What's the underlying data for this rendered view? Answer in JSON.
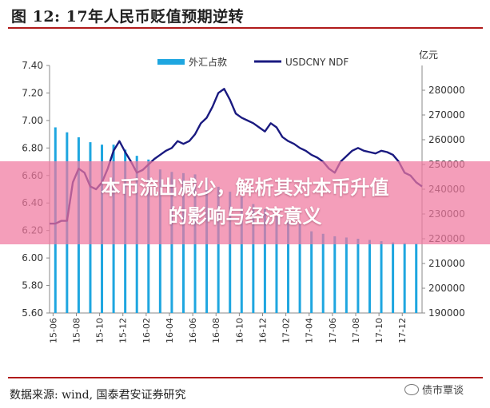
{
  "figure": {
    "title": "图 12: 17年人民币贬值预期逆转",
    "source": "数据来源: wind, 国泰君安证券研究",
    "watermark": "债市覃谈",
    "banner_line1": "本币流出减少，解析其对本币升值",
    "banner_line2": "的影响与经济意义"
  },
  "colors": {
    "bar": "#1ea6e0",
    "line": "#1a1a80",
    "title_rule": "#b01a1a",
    "banner": "#f078a0"
  },
  "chart_data": {
    "type": "bar+line",
    "grid": false,
    "legend_position": "top-center",
    "right_axis_unit": "亿元",
    "x_tick_labels": [
      "15-06",
      "15-08",
      "15-10",
      "15-12",
      "16-02",
      "16-04",
      "16-06",
      "16-08",
      "16-10",
      "16-12",
      "17-02",
      "17-04",
      "17-06",
      "17-08",
      "17-10",
      "17-12"
    ],
    "left_axis": {
      "min": 5.6,
      "max": 7.4,
      "ticks": [
        "5.60",
        "5.80",
        "6.00",
        "6.20",
        "6.40",
        "6.60",
        "6.80",
        "7.00",
        "7.20",
        "7.40"
      ]
    },
    "right_axis": {
      "min": 190000,
      "max": 290000,
      "ticks": [
        "190000",
        "200000",
        "210000",
        "220000",
        "230000",
        "240000",
        "250000",
        "260000",
        "270000",
        "280000"
      ]
    },
    "series": [
      {
        "name": "外汇占款",
        "kind": "bar",
        "axis": "right",
        "x": [
          0.5,
          1.5,
          2.5,
          3.5,
          4.5,
          5.5,
          6.5,
          7.5,
          8.5,
          9.5,
          10.5,
          11.5,
          12.5,
          13.5,
          14.5,
          15.5,
          16.5,
          17.5,
          18.5,
          19.5,
          20.5,
          21.5,
          22.5,
          23.5,
          24.5,
          25.5,
          26.5,
          27.5,
          28.5,
          29.5,
          30.5,
          31.5
        ],
        "values": [
          265000,
          263000,
          261000,
          259000,
          258000,
          258000,
          256000,
          253500,
          252000,
          248000,
          247000,
          246500,
          246000,
          244500,
          241000,
          239000,
          237000,
          234000,
          232000,
          229000,
          227000,
          226000,
          223000,
          222000,
          221000,
          220500,
          220000,
          219500,
          219000,
          218500,
          218200,
          218000
        ]
      },
      {
        "name": "USDCNY NDF",
        "kind": "line",
        "axis": "left",
        "x": [
          0,
          0.5,
          1,
          1.5,
          2,
          2.5,
          3,
          3.5,
          4,
          4.5,
          5,
          5.5,
          6,
          6.5,
          7,
          7.5,
          8,
          8.5,
          9,
          9.5,
          10,
          10.5,
          11,
          11.5,
          12,
          12.5,
          13,
          13.5,
          14,
          14.5,
          15,
          15.5,
          16,
          16.5,
          17,
          17.5,
          18,
          18.5,
          19,
          19.5,
          20,
          20.5,
          21,
          21.5,
          22,
          22.5,
          23,
          23.5,
          24,
          24.5,
          25,
          25.5,
          26,
          26.5,
          27,
          27.5,
          28,
          28.5,
          29,
          29.5,
          30,
          30.5,
          31,
          31.5,
          32
        ],
        "values": [
          6.25,
          6.25,
          6.27,
          6.27,
          6.55,
          6.65,
          6.62,
          6.52,
          6.5,
          6.55,
          6.65,
          6.78,
          6.85,
          6.77,
          6.7,
          6.62,
          6.64,
          6.68,
          6.72,
          6.75,
          6.78,
          6.8,
          6.85,
          6.83,
          6.85,
          6.9,
          6.98,
          7.02,
          7.1,
          7.2,
          7.23,
          7.15,
          7.05,
          7.02,
          7.0,
          6.98,
          6.95,
          6.92,
          6.98,
          6.95,
          6.88,
          6.85,
          6.83,
          6.8,
          6.78,
          6.75,
          6.73,
          6.7,
          6.65,
          6.62,
          6.7,
          6.74,
          6.78,
          6.8,
          6.78,
          6.77,
          6.76,
          6.78,
          6.77,
          6.75,
          6.7,
          6.62,
          6.6,
          6.55,
          6.52
        ]
      }
    ]
  }
}
